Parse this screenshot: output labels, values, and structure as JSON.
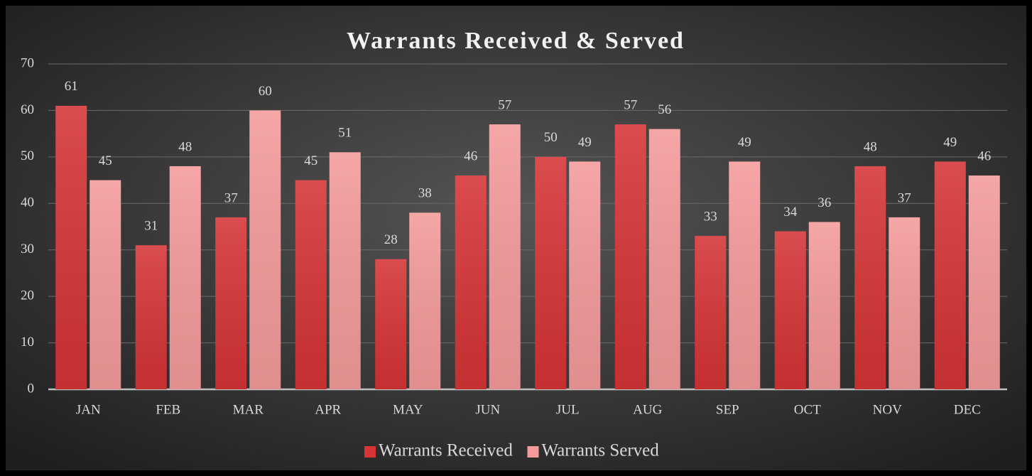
{
  "chart_data": {
    "type": "bar",
    "title": "Warrants Received & Served",
    "categories": [
      "JAN",
      "FEB",
      "MAR",
      "APR",
      "MAY",
      "JUN",
      "JUL",
      "AUG",
      "SEP",
      "OCT",
      "NOV",
      "DEC"
    ],
    "series": [
      {
        "name": "Warrants Received",
        "color": "#d63436",
        "values": [
          61,
          31,
          37,
          45,
          28,
          46,
          50,
          57,
          33,
          34,
          48,
          49
        ]
      },
      {
        "name": "Warrants Served",
        "color": "#f49a9b",
        "values": [
          45,
          48,
          60,
          51,
          38,
          57,
          49,
          56,
          49,
          36,
          37,
          46
        ]
      }
    ],
    "ylim": [
      0,
      70
    ],
    "yticks": [
      0,
      10,
      20,
      30,
      40,
      50,
      60,
      70
    ],
    "grid": true,
    "legend": "bottom"
  }
}
